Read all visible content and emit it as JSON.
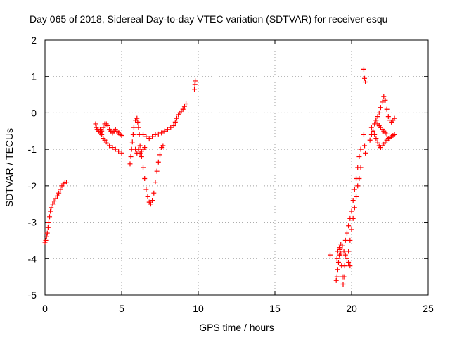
{
  "chart_data": {
    "type": "scatter",
    "title": "Day 065 of 2018, Sidereal Day-to-day VTEC variation (SDTVAR) for receiver esqu",
    "xlabel": "GPS time / hours",
    "ylabel": "SDTVAR / TECUs",
    "xlim": [
      0,
      25
    ],
    "ylim": [
      -5,
      2
    ],
    "xticks": [
      0,
      5,
      10,
      15,
      20,
      25
    ],
    "yticks": [
      -5,
      -4,
      -3,
      -2,
      -1,
      0,
      1,
      2
    ],
    "xtick_labels": [
      "0",
      "5",
      "10",
      "15",
      "20",
      "25"
    ],
    "ytick_labels": [
      "-5",
      "-4",
      "-3",
      "-2",
      "-1",
      "0",
      "1",
      "2"
    ],
    "grid": true,
    "marker": "+",
    "color": "#ff0000",
    "series": [
      {
        "name": "esqu",
        "segments": [
          {
            "points": [
              [
                0.0,
                -3.55
              ],
              [
                0.05,
                -3.5
              ],
              [
                0.1,
                -3.4
              ],
              [
                0.15,
                -3.3
              ],
              [
                0.2,
                -3.15
              ],
              [
                0.25,
                -3.0
              ],
              [
                0.3,
                -2.85
              ],
              [
                0.35,
                -2.7
              ],
              [
                0.4,
                -2.6
              ],
              [
                0.5,
                -2.5
              ],
              [
                0.6,
                -2.42
              ],
              [
                0.7,
                -2.35
              ],
              [
                0.8,
                -2.28
              ],
              [
                0.9,
                -2.2
              ],
              [
                1.0,
                -2.1
              ],
              [
                1.1,
                -2.0
              ],
              [
                1.2,
                -1.95
              ],
              [
                1.3,
                -1.92
              ],
              [
                1.4,
                -1.9
              ]
            ]
          },
          {
            "points": [
              [
                3.3,
                -0.3
              ],
              [
                3.35,
                -0.4
              ],
              [
                3.4,
                -0.45
              ],
              [
                3.5,
                -0.5
              ],
              [
                3.6,
                -0.55
              ],
              [
                3.7,
                -0.6
              ],
              [
                3.8,
                -0.7
              ],
              [
                3.9,
                -0.75
              ],
              [
                4.0,
                -0.8
              ],
              [
                4.1,
                -0.85
              ],
              [
                4.2,
                -0.9
              ],
              [
                4.4,
                -0.95
              ],
              [
                4.6,
                -1.0
              ],
              [
                4.8,
                -1.05
              ],
              [
                5.0,
                -1.1
              ]
            ]
          },
          {
            "points": [
              [
                3.6,
                -0.45
              ],
              [
                3.7,
                -0.5
              ],
              [
                3.8,
                -0.4
              ],
              [
                3.9,
                -0.3
              ],
              [
                4.0,
                -0.3
              ],
              [
                4.1,
                -0.35
              ],
              [
                4.2,
                -0.45
              ],
              [
                4.3,
                -0.5
              ],
              [
                4.4,
                -0.55
              ],
              [
                4.5,
                -0.5
              ],
              [
                4.6,
                -0.45
              ],
              [
                4.7,
                -0.5
              ],
              [
                4.8,
                -0.55
              ],
              [
                4.9,
                -0.6
              ],
              [
                5.0,
                -0.62
              ]
            ]
          },
          {
            "points": [
              [
                5.55,
                -1.4
              ],
              [
                5.6,
                -1.2
              ],
              [
                5.65,
                -1.0
              ],
              [
                5.7,
                -0.8
              ],
              [
                5.75,
                -0.6
              ],
              [
                5.8,
                -0.4
              ],
              [
                5.9,
                -0.2
              ],
              [
                6.0,
                -0.15
              ],
              [
                6.05,
                -0.25
              ],
              [
                6.1,
                -0.4
              ],
              [
                6.15,
                -0.6
              ]
            ]
          },
          {
            "points": [
              [
                6.2,
                -0.9
              ],
              [
                6.3,
                -1.2
              ],
              [
                6.4,
                -1.5
              ],
              [
                6.5,
                -1.8
              ],
              [
                6.6,
                -2.1
              ],
              [
                6.7,
                -2.3
              ],
              [
                6.8,
                -2.45
              ],
              [
                6.9,
                -2.5
              ],
              [
                7.0,
                -2.4
              ],
              [
                7.1,
                -2.2
              ],
              [
                7.2,
                -1.9
              ],
              [
                7.3,
                -1.6
              ],
              [
                7.4,
                -1.35
              ],
              [
                7.5,
                -1.15
              ],
              [
                7.6,
                -0.95
              ],
              [
                7.7,
                -0.9
              ]
            ]
          },
          {
            "points": [
              [
                5.9,
                -1.0
              ],
              [
                6.0,
                -1.1
              ],
              [
                6.1,
                -1.0
              ],
              [
                6.2,
                -1.1
              ],
              [
                6.3,
                -1.05
              ],
              [
                6.4,
                -1.0
              ],
              [
                6.5,
                -0.95
              ]
            ]
          },
          {
            "points": [
              [
                6.4,
                -0.6
              ],
              [
                6.6,
                -0.65
              ],
              [
                6.8,
                -0.7
              ],
              [
                7.0,
                -0.65
              ],
              [
                7.2,
                -0.6
              ],
              [
                7.4,
                -0.58
              ],
              [
                7.6,
                -0.55
              ],
              [
                7.8,
                -0.5
              ],
              [
                8.0,
                -0.45
              ],
              [
                8.2,
                -0.4
              ],
              [
                8.4,
                -0.35
              ],
              [
                8.5,
                -0.25
              ],
              [
                8.6,
                -0.15
              ],
              [
                8.7,
                -0.05
              ],
              [
                8.8,
                0.0
              ],
              [
                8.9,
                0.05
              ],
              [
                9.0,
                0.1
              ],
              [
                9.1,
                0.18
              ],
              [
                9.2,
                0.25
              ]
            ]
          },
          {
            "points": [
              [
                9.75,
                0.65
              ],
              [
                9.78,
                0.78
              ],
              [
                9.8,
                0.88
              ]
            ]
          },
          {
            "points": [
              [
                18.6,
                -3.9
              ]
            ]
          },
          {
            "points": [
              [
                19.0,
                -4.6
              ],
              [
                19.05,
                -4.5
              ],
              [
                19.1,
                -4.3
              ],
              [
                19.15,
                -4.1
              ],
              [
                19.2,
                -3.9
              ],
              [
                19.25,
                -3.75
              ],
              [
                19.3,
                -3.85
              ],
              [
                19.35,
                -4.2
              ],
              [
                19.4,
                -4.5
              ],
              [
                19.45,
                -4.7
              ],
              [
                19.5,
                -4.5
              ],
              [
                19.55,
                -4.2
              ]
            ]
          },
          {
            "points": [
              [
                19.05,
                -4.0
              ],
              [
                19.1,
                -3.8
              ],
              [
                19.2,
                -3.7
              ],
              [
                19.3,
                -3.6
              ],
              [
                19.4,
                -3.65
              ],
              [
                19.5,
                -3.8
              ],
              [
                19.6,
                -3.9
              ],
              [
                19.7,
                -4.0
              ],
              [
                19.8,
                -4.1
              ],
              [
                19.9,
                -4.2
              ]
            ]
          },
          {
            "points": [
              [
                19.6,
                -3.5
              ],
              [
                19.7,
                -3.3
              ],
              [
                19.8,
                -3.1
              ],
              [
                19.9,
                -2.9
              ],
              [
                20.0,
                -2.7
              ],
              [
                20.1,
                -2.4
              ],
              [
                20.2,
                -2.1
              ],
              [
                20.3,
                -1.8
              ],
              [
                20.4,
                -1.5
              ],
              [
                20.5,
                -1.2
              ],
              [
                20.6,
                -1.0
              ]
            ]
          },
          {
            "points": [
              [
                19.8,
                -3.8
              ],
              [
                19.9,
                -3.5
              ],
              [
                20.0,
                -3.2
              ],
              [
                20.1,
                -2.9
              ],
              [
                20.2,
                -2.6
              ],
              [
                20.3,
                -2.3
              ],
              [
                20.4,
                -2.0
              ],
              [
                20.5,
                -1.8
              ],
              [
                20.6,
                -1.5
              ]
            ]
          },
          {
            "points": [
              [
                20.8,
                -0.6
              ],
              [
                20.85,
                -0.9
              ],
              [
                20.9,
                -1.1
              ]
            ]
          },
          {
            "points": [
              [
                20.8,
                1.2
              ],
              [
                20.85,
                0.95
              ],
              [
                20.9,
                0.85
              ]
            ]
          },
          {
            "points": [
              [
                21.2,
                -0.75
              ],
              [
                21.3,
                -0.6
              ],
              [
                21.4,
                -0.5
              ],
              [
                21.5,
                -0.3
              ],
              [
                21.6,
                -0.2
              ],
              [
                21.7,
                -0.1
              ],
              [
                21.8,
                0.0
              ],
              [
                21.9,
                0.15
              ],
              [
                22.0,
                0.3
              ],
              [
                22.1,
                0.45
              ],
              [
                22.2,
                0.35
              ],
              [
                22.3,
                0.1
              ],
              [
                22.4,
                -0.1
              ],
              [
                22.5,
                -0.2
              ],
              [
                22.6,
                -0.25
              ],
              [
                22.7,
                -0.2
              ],
              [
                22.8,
                -0.15
              ]
            ]
          },
          {
            "points": [
              [
                21.3,
                -0.4
              ],
              [
                21.4,
                -0.5
              ],
              [
                21.5,
                -0.6
              ],
              [
                21.6,
                -0.7
              ],
              [
                21.7,
                -0.8
              ],
              [
                21.8,
                -0.9
              ],
              [
                21.9,
                -0.95
              ],
              [
                22.0,
                -0.9
              ],
              [
                22.1,
                -0.85
              ],
              [
                22.2,
                -0.8
              ],
              [
                22.3,
                -0.75
              ],
              [
                22.4,
                -0.7
              ],
              [
                22.5,
                -0.68
              ],
              [
                22.6,
                -0.65
              ],
              [
                22.7,
                -0.62
              ],
              [
                22.8,
                -0.6
              ]
            ]
          },
          {
            "points": [
              [
                21.6,
                -0.2
              ],
              [
                21.7,
                -0.3
              ],
              [
                21.8,
                -0.35
              ],
              [
                21.9,
                -0.4
              ],
              [
                22.0,
                -0.45
              ],
              [
                22.1,
                -0.5
              ],
              [
                22.2,
                -0.55
              ],
              [
                22.3,
                -0.58
              ]
            ]
          }
        ]
      }
    ]
  }
}
